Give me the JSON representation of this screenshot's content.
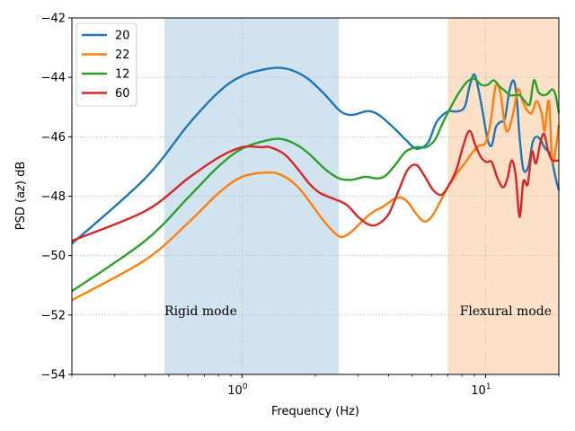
{
  "chart_data": {
    "type": "line",
    "title": "",
    "xlabel": "Frequency (Hz)",
    "ylabel": "PSD (a_z) dB",
    "xscale": "log",
    "xlim": [
      0.2,
      20
    ],
    "ylim": [
      -54,
      -42
    ],
    "grid": true,
    "legend_position": "top-left",
    "x_ticks": [
      {
        "value": 1,
        "label": "10^0"
      },
      {
        "value": 10,
        "label": "10^1"
      }
    ],
    "y_ticks": [
      -54,
      -52,
      -50,
      -48,
      -46,
      -44,
      -42
    ],
    "y_tick_labels": [
      "−54",
      "−52",
      "−50",
      "−48",
      "−46",
      "−44",
      "−42"
    ],
    "regions": [
      {
        "label": "Rigid mode",
        "x_from": 0.48,
        "x_to": 2.5,
        "color": "#d2e3f0"
      },
      {
        "label": "Flexural mode",
        "x_from": 7.0,
        "x_to": 20,
        "color": "#fde0c8"
      }
    ],
    "series": [
      {
        "name": "20",
        "color": "#1f77b4",
        "points": [
          [
            0.2,
            -49.6
          ],
          [
            0.4,
            -47.4
          ],
          [
            0.6,
            -45.6
          ],
          [
            0.8,
            -44.5
          ],
          [
            1.0,
            -43.95
          ],
          [
            1.3,
            -43.7
          ],
          [
            1.5,
            -43.7
          ],
          [
            1.7,
            -43.85
          ],
          [
            1.9,
            -44.1
          ],
          [
            2.2,
            -44.6
          ],
          [
            2.5,
            -45.1
          ],
          [
            2.7,
            -45.25
          ],
          [
            2.9,
            -45.25
          ],
          [
            3.2,
            -45.15
          ],
          [
            3.4,
            -45.15
          ],
          [
            3.7,
            -45.3
          ],
          [
            4.2,
            -45.7
          ],
          [
            4.7,
            -46.1
          ],
          [
            5.2,
            -46.4
          ],
          [
            5.8,
            -46.2
          ],
          [
            6.3,
            -45.5
          ],
          [
            7.0,
            -45.15
          ],
          [
            7.6,
            -45.15
          ],
          [
            8.2,
            -45.0
          ],
          [
            8.6,
            -44.3
          ],
          [
            9.0,
            -43.9
          ],
          [
            9.4,
            -44.5
          ],
          [
            9.8,
            -45.3
          ],
          [
            10.2,
            -46.1
          ],
          [
            10.6,
            -46.3
          ],
          [
            11.0,
            -45.7
          ],
          [
            11.5,
            -45.5
          ],
          [
            12.0,
            -45.4
          ],
          [
            12.5,
            -44.5
          ],
          [
            13.0,
            -44.1
          ],
          [
            13.4,
            -44.6
          ],
          [
            13.8,
            -46.0
          ],
          [
            14.3,
            -47.1
          ],
          [
            15.0,
            -47.0
          ],
          [
            15.6,
            -46.2
          ],
          [
            16.2,
            -46.0
          ],
          [
            16.8,
            -46.1
          ],
          [
            17.6,
            -46.4
          ],
          [
            18.5,
            -46.6
          ],
          [
            19.3,
            -47.3
          ],
          [
            20.0,
            -47.8
          ]
        ]
      },
      {
        "name": "22",
        "color": "#ff7f0e",
        "points": [
          [
            0.2,
            -51.5
          ],
          [
            0.4,
            -50.15
          ],
          [
            0.6,
            -48.9
          ],
          [
            0.8,
            -47.9
          ],
          [
            1.0,
            -47.35
          ],
          [
            1.3,
            -47.2
          ],
          [
            1.5,
            -47.35
          ],
          [
            1.7,
            -47.7
          ],
          [
            1.9,
            -48.2
          ],
          [
            2.2,
            -48.9
          ],
          [
            2.5,
            -49.35
          ],
          [
            2.7,
            -49.3
          ],
          [
            2.9,
            -49.1
          ],
          [
            3.2,
            -48.75
          ],
          [
            3.5,
            -48.5
          ],
          [
            3.8,
            -48.35
          ],
          [
            4.2,
            -48.1
          ],
          [
            4.5,
            -48.05
          ],
          [
            4.8,
            -48.2
          ],
          [
            5.2,
            -48.6
          ],
          [
            5.6,
            -48.85
          ],
          [
            6.0,
            -48.7
          ],
          [
            6.5,
            -48.2
          ],
          [
            7.0,
            -47.7
          ],
          [
            7.6,
            -47.25
          ],
          [
            8.2,
            -46.9
          ],
          [
            8.8,
            -46.55
          ],
          [
            9.4,
            -46.3
          ],
          [
            10.0,
            -46.2
          ],
          [
            10.5,
            -45.5
          ],
          [
            11.0,
            -44.3
          ],
          [
            11.5,
            -44.5
          ],
          [
            12.0,
            -45.6
          ],
          [
            12.4,
            -45.8
          ],
          [
            13.0,
            -45.2
          ],
          [
            13.6,
            -44.4
          ],
          [
            14.2,
            -44.8
          ],
          [
            14.8,
            -45.1
          ],
          [
            15.5,
            -45.2
          ],
          [
            16.2,
            -44.8
          ],
          [
            17.0,
            -45.2
          ],
          [
            17.5,
            -45.8
          ],
          [
            18.2,
            -44.8
          ],
          [
            18.8,
            -46.8
          ],
          [
            19.5,
            -46.3
          ],
          [
            20.0,
            -45.6
          ]
        ]
      },
      {
        "name": "12",
        "color": "#2ca02c",
        "points": [
          [
            0.2,
            -51.2
          ],
          [
            0.4,
            -49.5
          ],
          [
            0.6,
            -48.05
          ],
          [
            0.8,
            -47.0
          ],
          [
            1.0,
            -46.4
          ],
          [
            1.3,
            -46.1
          ],
          [
            1.5,
            -46.1
          ],
          [
            1.7,
            -46.3
          ],
          [
            1.9,
            -46.6
          ],
          [
            2.2,
            -47.1
          ],
          [
            2.5,
            -47.4
          ],
          [
            2.8,
            -47.45
          ],
          [
            3.2,
            -47.35
          ],
          [
            3.6,
            -47.4
          ],
          [
            3.9,
            -47.3
          ],
          [
            4.3,
            -46.9
          ],
          [
            4.7,
            -46.5
          ],
          [
            5.2,
            -46.35
          ],
          [
            5.7,
            -46.35
          ],
          [
            6.2,
            -46.1
          ],
          [
            6.7,
            -45.5
          ],
          [
            7.2,
            -45.0
          ],
          [
            7.8,
            -44.5
          ],
          [
            8.4,
            -44.15
          ],
          [
            9.0,
            -44.05
          ],
          [
            9.6,
            -44.25
          ],
          [
            10.2,
            -44.25
          ],
          [
            10.8,
            -44.1
          ],
          [
            11.4,
            -44.3
          ],
          [
            12.0,
            -44.45
          ],
          [
            12.6,
            -44.6
          ],
          [
            13.2,
            -44.6
          ],
          [
            13.8,
            -44.6
          ],
          [
            14.5,
            -44.8
          ],
          [
            15.2,
            -44.9
          ],
          [
            15.8,
            -44.1
          ],
          [
            16.5,
            -44.5
          ],
          [
            17.3,
            -44.6
          ],
          [
            18.0,
            -44.55
          ],
          [
            18.8,
            -44.4
          ],
          [
            19.4,
            -44.6
          ],
          [
            20.0,
            -45.2
          ]
        ]
      },
      {
        "name": "60",
        "color": "#d62728",
        "points": [
          [
            0.2,
            -49.5
          ],
          [
            0.4,
            -48.5
          ],
          [
            0.6,
            -47.4
          ],
          [
            0.8,
            -46.7
          ],
          [
            1.0,
            -46.35
          ],
          [
            1.2,
            -46.35
          ],
          [
            1.3,
            -46.35
          ],
          [
            1.5,
            -46.6
          ],
          [
            1.7,
            -47.1
          ],
          [
            1.9,
            -47.6
          ],
          [
            2.1,
            -47.9
          ],
          [
            2.4,
            -48.1
          ],
          [
            2.7,
            -48.3
          ],
          [
            3.0,
            -48.7
          ],
          [
            3.3,
            -48.95
          ],
          [
            3.6,
            -48.95
          ],
          [
            4.0,
            -48.6
          ],
          [
            4.4,
            -47.8
          ],
          [
            4.8,
            -47.1
          ],
          [
            5.2,
            -46.95
          ],
          [
            5.6,
            -47.3
          ],
          [
            6.1,
            -47.8
          ],
          [
            6.6,
            -47.95
          ],
          [
            7.1,
            -47.6
          ],
          [
            7.6,
            -47.1
          ],
          [
            8.1,
            -46.3
          ],
          [
            8.6,
            -45.8
          ],
          [
            9.1,
            -46.3
          ],
          [
            9.6,
            -46.7
          ],
          [
            10.1,
            -46.85
          ],
          [
            10.6,
            -46.85
          ],
          [
            11.2,
            -47.4
          ],
          [
            11.8,
            -47.7
          ],
          [
            12.3,
            -47.4
          ],
          [
            12.8,
            -46.8
          ],
          [
            13.3,
            -47.3
          ],
          [
            13.8,
            -48.7
          ],
          [
            14.3,
            -47.5
          ],
          [
            14.9,
            -47.6
          ],
          [
            15.5,
            -46.5
          ],
          [
            16.1,
            -46.9
          ],
          [
            16.8,
            -46.2
          ],
          [
            17.4,
            -45.9
          ],
          [
            18.1,
            -46.5
          ],
          [
            18.8,
            -46.8
          ],
          [
            19.4,
            -46.8
          ],
          [
            20.0,
            -46.8
          ]
        ]
      }
    ]
  }
}
